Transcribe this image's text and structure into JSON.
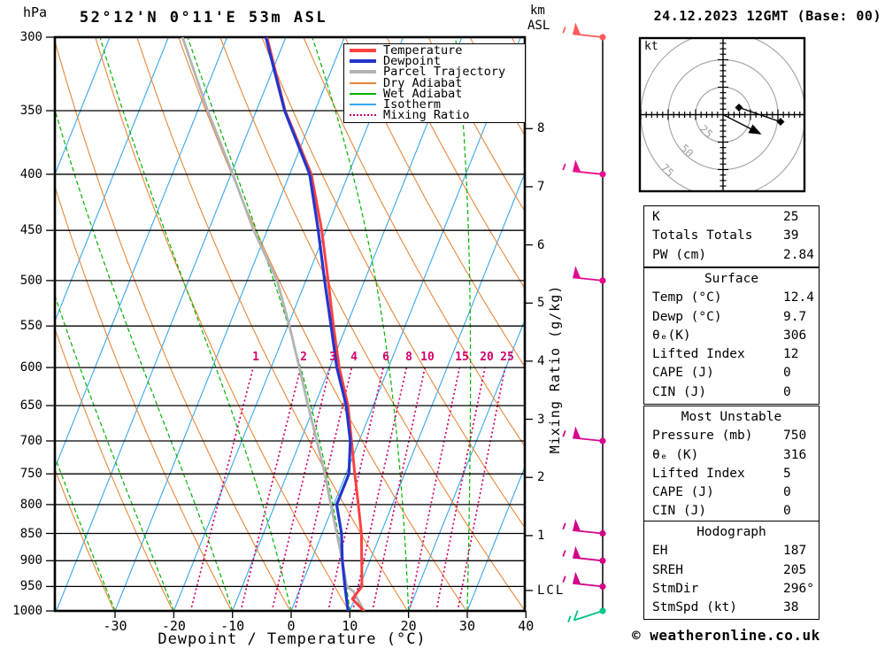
{
  "header": {
    "pressure_unit": "hPa",
    "title": "52°12'N 0°11'E 53m ASL",
    "km_line1": "km",
    "km_line2": "ASL",
    "date": "24.12.2023 12GMT (Base: 00)"
  },
  "legend": {
    "items": [
      {
        "label": "Temperature",
        "color": "#ff4040",
        "style": "solid",
        "thick": true
      },
      {
        "label": "Dewpoint",
        "color": "#2236cc",
        "style": "solid",
        "thick": true
      },
      {
        "label": "Parcel Trajectory",
        "color": "#b3b3b3",
        "style": "solid",
        "thick": true
      },
      {
        "label": "Dry Adiabat",
        "color": "#e8873a",
        "style": "solid",
        "thick": false
      },
      {
        "label": "Wet Adiabat",
        "color": "#00b400",
        "style": "solid",
        "thick": false
      },
      {
        "label": "Isotherm",
        "color": "#38a8ec",
        "style": "solid",
        "thick": false
      },
      {
        "label": "Mixing Ratio",
        "color": "#d4006a",
        "style": "dotted",
        "thick": false
      }
    ]
  },
  "axes": {
    "pressure_ticks": [
      300,
      350,
      400,
      450,
      500,
      550,
      600,
      650,
      700,
      750,
      800,
      850,
      900,
      950,
      1000
    ],
    "temp_ticks": [
      -30,
      -20,
      -10,
      0,
      10,
      20,
      30,
      40
    ],
    "temp_axis_label": "Dewpoint / Temperature (°C)",
    "km_ticks": [
      1,
      2,
      3,
      4,
      5,
      6,
      7,
      8
    ],
    "lcl_label": "LCL",
    "lcl_pressure": 958,
    "mixing_ratio_axis_label": "Mixing Ratio (g/kg)"
  },
  "chart_data": {
    "type": "line",
    "title": "Skew-T log-P sounding, 52°12'N 0°11'E 53m ASL, 24.12.2023 12GMT",
    "x_axis": {
      "label": "Dewpoint / Temperature (°C)",
      "ticks": [
        -30,
        -20,
        -10,
        0,
        10,
        20,
        30,
        40
      ]
    },
    "y_axis": {
      "label": "hPa",
      "scale": "log",
      "range": [
        300,
        1000
      ]
    },
    "background": {
      "isotherm_step_c": 10,
      "dry_adiabat_step_k": 10,
      "wet_adiabat_step_c": 10,
      "mixing_ratio_lines_g_kg": [
        1,
        2,
        3,
        4,
        6,
        8,
        10,
        15,
        20,
        25
      ]
    },
    "series": [
      {
        "name": "Temperature",
        "color": "#ff4040",
        "width": 3,
        "points_p_T": [
          [
            1000,
            12.4
          ],
          [
            975,
            9.6
          ],
          [
            950,
            10.4
          ],
          [
            900,
            8.6
          ],
          [
            850,
            6.7
          ],
          [
            800,
            4.2
          ],
          [
            750,
            1.5
          ],
          [
            700,
            -1.3
          ],
          [
            650,
            -4.3
          ],
          [
            600,
            -8.4
          ],
          [
            550,
            -12.2
          ],
          [
            500,
            -16.2
          ],
          [
            450,
            -20.7
          ],
          [
            400,
            -26.3
          ],
          [
            350,
            -35.1
          ],
          [
            300,
            -43.2
          ]
        ]
      },
      {
        "name": "Dewpoint",
        "color": "#2236cc",
        "width": 3.2,
        "points_p_T": [
          [
            1000,
            9.7
          ],
          [
            950,
            7.5
          ],
          [
            900,
            5.3
          ],
          [
            850,
            3.3
          ],
          [
            800,
            0.5
          ],
          [
            750,
            0.5
          ],
          [
            700,
            -1.5
          ],
          [
            650,
            -4.6
          ],
          [
            600,
            -8.8
          ],
          [
            550,
            -12.6
          ],
          [
            500,
            -16.8
          ],
          [
            450,
            -21.3
          ],
          [
            400,
            -26.6
          ],
          [
            350,
            -35.2
          ],
          [
            300,
            -43.4
          ]
        ]
      },
      {
        "name": "Parcel Trajectory",
        "color": "#b3b3b3",
        "width": 2.8,
        "points_p_T": [
          [
            1000,
            12.4
          ],
          [
            960,
            9.3
          ],
          [
            950,
            7.8
          ],
          [
            900,
            5.3
          ],
          [
            850,
            2.5
          ],
          [
            800,
            -0.5
          ],
          [
            750,
            -3.6
          ],
          [
            700,
            -7.2
          ],
          [
            650,
            -11.1
          ],
          [
            600,
            -15.2
          ],
          [
            550,
            -19.7
          ],
          [
            500,
            -24.9
          ],
          [
            450,
            -32.3
          ],
          [
            400,
            -39.7
          ],
          [
            350,
            -48.3
          ],
          [
            300,
            -57.6
          ]
        ]
      }
    ],
    "wind_barbs": [
      {
        "pressure": 300,
        "speed_kt": 55,
        "color": "#ff5a5a",
        "staff": "up-left"
      },
      {
        "pressure": 400,
        "speed_kt": 55,
        "color": "#ea0e8e",
        "staff": "up-left"
      },
      {
        "pressure": 500,
        "speed_kt": 50,
        "color": "#e20a90",
        "staff": "up-left"
      },
      {
        "pressure": 700,
        "speed_kt": 55,
        "color": "#d8068e",
        "staff": "up-left"
      },
      {
        "pressure": 850,
        "speed_kt": 55,
        "color": "#d2048a",
        "staff": "up-left"
      },
      {
        "pressure": 900,
        "speed_kt": 55,
        "color": "#d2048a",
        "staff": "up-left"
      },
      {
        "pressure": 950,
        "speed_kt": 55,
        "color": "#d2048a",
        "staff": "up-left"
      },
      {
        "pressure": 1000,
        "speed_kt": 15,
        "color": "#00c389",
        "staff": "down-left"
      }
    ],
    "hodograph": {
      "unit": "kt",
      "rings_kt": [
        25,
        50,
        75
      ],
      "arrows": [
        {
          "from_kt": [
            14.5,
            6.5
          ],
          "to_kt": [
            52.4,
            -6.5
          ],
          "start_marker": "diamond",
          "end_marker": "diamond"
        },
        {
          "from_kt": [
            0,
            0
          ],
          "to_kt": [
            31.5,
            -16.1
          ],
          "start_marker": "none",
          "end_marker": "arrow"
        }
      ]
    }
  },
  "hodograph": {
    "unit_label": "kt",
    "ring_labels": [
      "25",
      "50",
      "75"
    ],
    "ring_color": "#a8a8a8"
  },
  "panels": [
    {
      "header": null,
      "rows": [
        [
          "K",
          "25"
        ],
        [
          "Totals Totals",
          "39"
        ],
        [
          "PW (cm)",
          "2.84"
        ]
      ]
    },
    {
      "header": "Surface",
      "rows": [
        [
          "Temp (°C)",
          "12.4"
        ],
        [
          "Dewp (°C)",
          "9.7"
        ],
        [
          "θₑ(K)",
          "306"
        ],
        [
          "Lifted Index",
          "12"
        ],
        [
          "CAPE (J)",
          "0"
        ],
        [
          "CIN (J)",
          "0"
        ]
      ]
    },
    {
      "header": "Most Unstable",
      "rows": [
        [
          "Pressure (mb)",
          "750"
        ],
        [
          "θₑ (K)",
          "316"
        ],
        [
          "Lifted Index",
          "5"
        ],
        [
          "CAPE (J)",
          "0"
        ],
        [
          "CIN (J)",
          "0"
        ]
      ]
    },
    {
      "header": "Hodograph",
      "rows": [
        [
          "EH",
          "187"
        ],
        [
          "SREH",
          "205"
        ],
        [
          "StmDir",
          "296°"
        ],
        [
          "StmSpd (kt)",
          "38"
        ]
      ]
    }
  ],
  "mixing_ratio_labels": [
    "1",
    "2",
    "3",
    "4",
    "6",
    "8",
    "10",
    "15",
    "20",
    "25"
  ],
  "footer": {
    "copyright": "© weatheronline.co.uk"
  }
}
